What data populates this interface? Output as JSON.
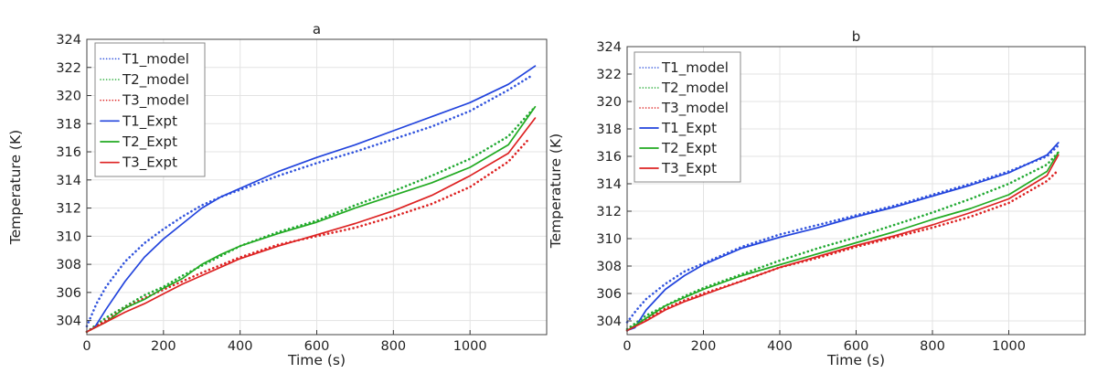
{
  "chart_data": [
    {
      "type": "line",
      "title": "a",
      "xlabel": "Time (s)",
      "ylabel": "Temperature  (K)",
      "xlim": [
        0,
        1200
      ],
      "ylim": [
        303,
        324
      ],
      "xticks": [
        0,
        200,
        400,
        600,
        800,
        1000
      ],
      "yticks": [
        304,
        306,
        308,
        310,
        312,
        314,
        316,
        318,
        320,
        322,
        324
      ],
      "xtick_labels": [
        "0",
        "200",
        "400",
        "600",
        "800",
        "1000"
      ],
      "ytick_labels": [
        "304",
        "306",
        "308",
        "310",
        "312",
        "314",
        "316",
        "318",
        "320",
        "322",
        "324"
      ],
      "grid": true,
      "legend_position": "top-left",
      "series": [
        {
          "name": "T1_model",
          "style": "dotted",
          "color": "#3355dd",
          "x": [
            0,
            25,
            50,
            100,
            150,
            200,
            250,
            300,
            350,
            400,
            500,
            600,
            700,
            800,
            900,
            1000,
            1100,
            1160
          ],
          "y": [
            303.6,
            305.2,
            306.4,
            308.2,
            309.5,
            310.5,
            311.4,
            312.2,
            312.8,
            313.3,
            314.3,
            315.2,
            316.0,
            316.9,
            317.8,
            318.9,
            320.4,
            321.4
          ]
        },
        {
          "name": "T2_model",
          "style": "dotted",
          "color": "#22aa33",
          "x": [
            0,
            50,
            100,
            150,
            200,
            250,
            300,
            400,
            500,
            600,
            700,
            800,
            900,
            1000,
            1100,
            1170
          ],
          "y": [
            303.2,
            304.2,
            305.0,
            305.8,
            306.4,
            307.2,
            307.9,
            309.3,
            310.3,
            311.1,
            312.2,
            313.2,
            314.3,
            315.5,
            317.1,
            319.2
          ]
        },
        {
          "name": "T3_model",
          "style": "dotted",
          "color": "#dd2222",
          "x": [
            0,
            50,
            100,
            150,
            200,
            300,
            400,
            500,
            600,
            700,
            800,
            900,
            1000,
            1100,
            1150
          ],
          "y": [
            303.2,
            304.0,
            304.9,
            305.6,
            306.2,
            307.4,
            308.5,
            309.4,
            310.0,
            310.6,
            311.4,
            312.3,
            313.5,
            315.3,
            316.8
          ]
        },
        {
          "name": "T1_Expt",
          "style": "solid",
          "color": "#2244dd",
          "x": [
            0,
            20,
            50,
            100,
            150,
            200,
            250,
            300,
            350,
            400,
            500,
            600,
            700,
            800,
            900,
            1000,
            1100,
            1170
          ],
          "y": [
            303.2,
            303.5,
            304.8,
            306.8,
            308.5,
            309.8,
            310.9,
            312.0,
            312.8,
            313.4,
            314.6,
            315.6,
            316.5,
            317.5,
            318.5,
            319.5,
            320.8,
            322.1
          ]
        },
        {
          "name": "T2_Expt",
          "style": "solid",
          "color": "#22aa22",
          "x": [
            0,
            50,
            100,
            150,
            200,
            250,
            300,
            350,
            400,
            500,
            600,
            700,
            800,
            900,
            1000,
            1100,
            1170
          ],
          "y": [
            303.2,
            303.9,
            304.9,
            305.5,
            306.3,
            307.0,
            308.0,
            308.7,
            309.3,
            310.2,
            311.0,
            312.0,
            312.9,
            313.8,
            314.9,
            316.5,
            319.2
          ]
        },
        {
          "name": "T3_Expt",
          "style": "solid",
          "color": "#dd2222",
          "x": [
            0,
            50,
            100,
            150,
            200,
            250,
            300,
            400,
            500,
            600,
            700,
            800,
            900,
            1000,
            1100,
            1170
          ],
          "y": [
            303.2,
            303.9,
            304.6,
            305.2,
            305.9,
            306.6,
            307.2,
            308.4,
            309.3,
            310.1,
            310.9,
            311.8,
            312.9,
            314.3,
            315.9,
            318.4
          ]
        }
      ]
    },
    {
      "type": "line",
      "title": "b",
      "xlabel": "Time (s)",
      "ylabel": "Temperature  (K)",
      "xlim": [
        0,
        1200
      ],
      "ylim": [
        303,
        324
      ],
      "xticks": [
        0,
        200,
        400,
        600,
        800,
        1000
      ],
      "yticks": [
        304,
        306,
        308,
        310,
        312,
        314,
        316,
        318,
        320,
        322,
        324
      ],
      "xtick_labels": [
        "0",
        "200",
        "400",
        "600",
        "800",
        "1000"
      ],
      "ytick_labels": [
        "304",
        "306",
        "308",
        "310",
        "312",
        "314",
        "316",
        "318",
        "320",
        "322",
        "324"
      ],
      "grid": true,
      "legend_position": "top-left",
      "series": [
        {
          "name": "T1_model",
          "style": "dotted",
          "color": "#3355dd",
          "x": [
            0,
            25,
            50,
            100,
            150,
            200,
            300,
            400,
            500,
            600,
            700,
            800,
            900,
            1000,
            1100,
            1130
          ],
          "y": [
            303.9,
            304.8,
            305.6,
            306.7,
            307.6,
            308.2,
            309.4,
            310.3,
            311.0,
            311.7,
            312.4,
            313.2,
            314.0,
            314.9,
            316.0,
            316.8
          ]
        },
        {
          "name": "T2_model",
          "style": "dotted",
          "color": "#22aa33",
          "x": [
            0,
            50,
            100,
            150,
            200,
            300,
            400,
            500,
            600,
            700,
            800,
            900,
            1000,
            1100,
            1130
          ],
          "y": [
            303.4,
            304.4,
            305.1,
            305.8,
            306.4,
            307.4,
            308.4,
            309.3,
            310.1,
            311.0,
            311.9,
            312.9,
            314.0,
            315.4,
            316.3
          ]
        },
        {
          "name": "T3_model",
          "style": "dotted",
          "color": "#dd2222",
          "x": [
            0,
            50,
            100,
            150,
            200,
            300,
            400,
            500,
            600,
            700,
            800,
            900,
            1000,
            1100,
            1130
          ],
          "y": [
            303.3,
            304.1,
            304.9,
            305.5,
            306.0,
            306.9,
            307.9,
            308.6,
            309.4,
            310.1,
            310.8,
            311.6,
            312.6,
            314.2,
            315.0
          ]
        },
        {
          "name": "T1_Expt",
          "style": "solid",
          "color": "#2244dd",
          "x": [
            0,
            20,
            50,
            100,
            150,
            200,
            300,
            400,
            500,
            600,
            700,
            800,
            900,
            1000,
            1100,
            1130
          ],
          "y": [
            303.3,
            303.5,
            304.8,
            306.3,
            307.3,
            308.1,
            309.3,
            310.1,
            310.8,
            311.6,
            312.3,
            313.1,
            313.9,
            314.8,
            316.1,
            317.0
          ]
        },
        {
          "name": "T2_Expt",
          "style": "solid",
          "color": "#22aa22",
          "x": [
            0,
            50,
            100,
            150,
            200,
            300,
            400,
            500,
            600,
            700,
            800,
            900,
            1000,
            1100,
            1130
          ],
          "y": [
            303.3,
            304.2,
            305.1,
            305.7,
            306.3,
            307.3,
            308.1,
            308.9,
            309.7,
            310.5,
            311.4,
            312.2,
            313.2,
            314.9,
            316.3
          ]
        },
        {
          "name": "T3_Expt",
          "style": "solid",
          "color": "#dd2222",
          "x": [
            0,
            50,
            100,
            150,
            200,
            300,
            400,
            500,
            600,
            700,
            800,
            900,
            1000,
            1100,
            1130
          ],
          "y": [
            303.3,
            304.0,
            304.8,
            305.4,
            305.9,
            306.9,
            307.9,
            308.7,
            309.5,
            310.2,
            311.0,
            311.9,
            312.9,
            314.6,
            316.1
          ]
        }
      ]
    }
  ]
}
